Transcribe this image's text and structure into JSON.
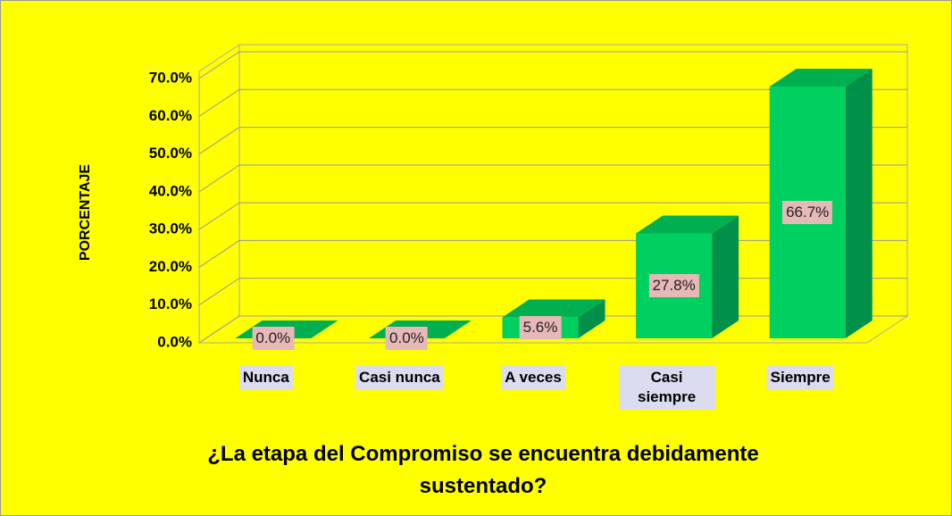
{
  "chart_data": {
    "type": "bar3d",
    "title": "¿La etapa del Compromiso se encuentra debidamente sustentado?",
    "y_axis_label": "PORCENTAJE",
    "categories": [
      "Nunca",
      "Casi nunca",
      "A veces",
      "Casi siempre",
      "Siempre"
    ],
    "values": [
      0,
      0,
      5.6,
      27.8,
      66.7
    ],
    "value_labels": [
      "0.0%",
      "0.0%",
      "5.6%",
      "27.8%",
      "66.7%"
    ],
    "color": "#00d060",
    "ylim": [
      0,
      70
    ],
    "yticks": [
      {
        "value": 0,
        "label": "0.0%"
      },
      {
        "value": 10,
        "label": "10.0%"
      },
      {
        "value": 20,
        "label": "20.0%"
      },
      {
        "value": 30,
        "label": "30.0%"
      },
      {
        "value": 40,
        "label": "40.0%"
      },
      {
        "value": 50,
        "label": "50.0%"
      },
      {
        "value": 60,
        "label": "60.0%"
      },
      {
        "value": 70,
        "label": "70.0%"
      }
    ],
    "grid": true
  }
}
